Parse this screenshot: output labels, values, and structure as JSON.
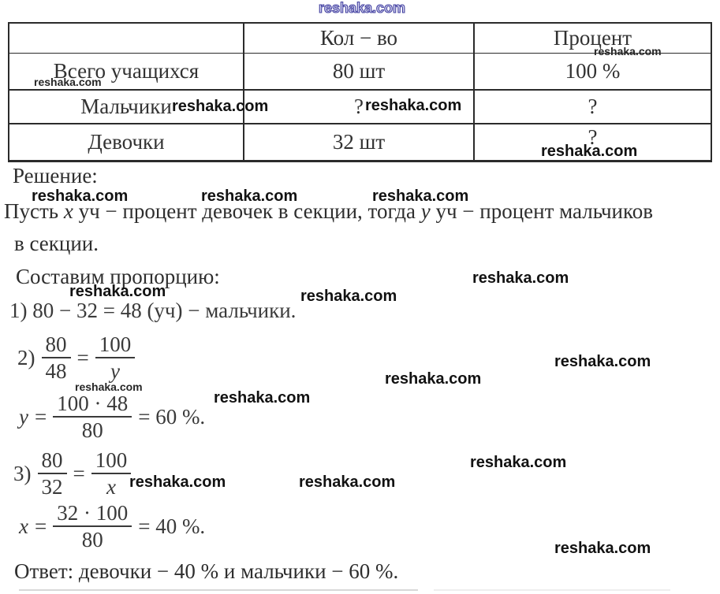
{
  "watermark": {
    "text": "reshaka.com"
  },
  "table": {
    "headers": {
      "col1": "",
      "col2": "Кол − во",
      "col3": "Процент"
    },
    "rows": [
      {
        "label": "Всего учащихся",
        "count": "80 шт",
        "percent": "100 %"
      },
      {
        "label": "Мальчики",
        "count": "?",
        "percent": "?"
      },
      {
        "label": "Девочки",
        "count": "32 шт",
        "percent": "?"
      }
    ]
  },
  "solution": {
    "heading": "Решение:",
    "intro_part1": "Пусть ",
    "var_x": "x",
    "intro_part2": " уч − процент девочек в секции, тогда ",
    "var_y": "y",
    "intro_part3": " уч − процент мальчиков",
    "intro_line2": "в секции.",
    "proportion_heading": "Составим пропорцию:",
    "step1": "1) 80 − 32 = 48 (уч) − мальчики.",
    "step2": {
      "label": "2)",
      "frac1_num": "80",
      "frac1_den": "48",
      "equals": "=",
      "frac2_num": "100",
      "frac2_den": "y"
    },
    "step2_result": {
      "lhs": "y",
      "equals": "=",
      "num": "100 · 48",
      "den": "80",
      "result": "= 60 %."
    },
    "step3": {
      "label": "3)",
      "frac1_num": "80",
      "frac1_den": "32",
      "equals": "=",
      "frac2_num": "100",
      "frac2_den": "x"
    },
    "step3_result": {
      "lhs": "x",
      "equals": "=",
      "num": "32 · 100",
      "den": "80",
      "result": "= 40 %."
    },
    "answer": "Ответ: девочки − 40 % и мальчики − 60 %."
  }
}
